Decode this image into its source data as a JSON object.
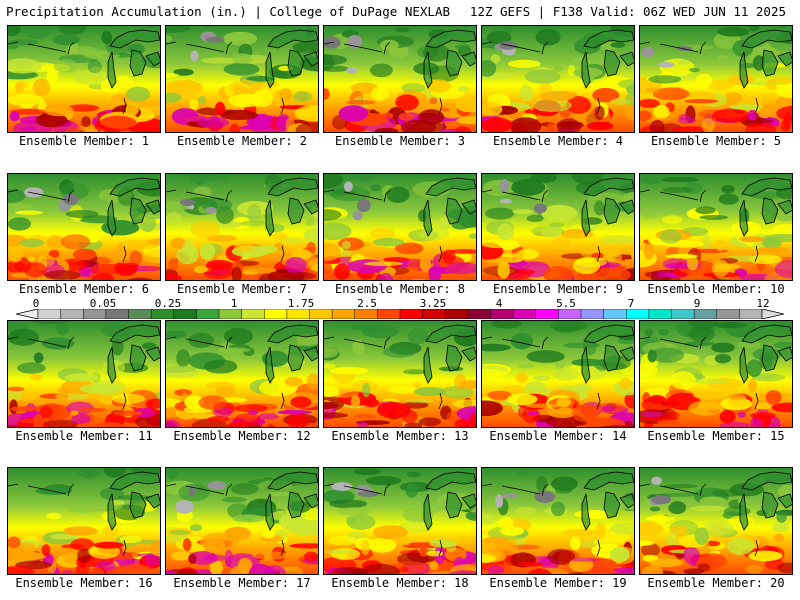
{
  "header": {
    "left_title": "Precipitation Accumulation (in.) | College of DuPage NEXLAB",
    "right_title": "12Z GEFS | F138 Valid: 06Z WED JUN 11 2025"
  },
  "colorbar": {
    "tick_labels": [
      "0",
      "0.05",
      "0.25",
      "1",
      "1.75",
      "2.5",
      "3.25",
      "4",
      "5.5",
      "7",
      "9",
      "12"
    ],
    "colors": [
      "#d2d2d2",
      "#b4b4b4",
      "#969696",
      "#787878",
      "#5a8c5a",
      "#2f8f2f",
      "#1f7a1f",
      "#3ca53c",
      "#8cc83c",
      "#c8e632",
      "#ffff00",
      "#ffe600",
      "#ffc800",
      "#ffa500",
      "#ff7f00",
      "#ff4500",
      "#ff0000",
      "#d20000",
      "#aa0000",
      "#8b0032",
      "#b4006e",
      "#dc00b4",
      "#ff00ff",
      "#c864ff",
      "#9696ff",
      "#64c8ff",
      "#00ffff",
      "#00e6c8",
      "#40c8c8",
      "#64a0a0",
      "#969696",
      "#b4b4b4"
    ]
  },
  "panels": [
    {
      "label": "Ensemble Member: 1"
    },
    {
      "label": "Ensemble Member: 2"
    },
    {
      "label": "Ensemble Member: 3"
    },
    {
      "label": "Ensemble Member: 4"
    },
    {
      "label": "Ensemble Member: 5"
    },
    {
      "label": "Ensemble Member: 6"
    },
    {
      "label": "Ensemble Member: 7"
    },
    {
      "label": "Ensemble Member: 8"
    },
    {
      "label": "Ensemble Member: 9"
    },
    {
      "label": "Ensemble Member: 10"
    },
    {
      "label": "Ensemble Member: 11"
    },
    {
      "label": "Ensemble Member: 12"
    },
    {
      "label": "Ensemble Member: 13"
    },
    {
      "label": "Ensemble Member: 14"
    },
    {
      "label": "Ensemble Member: 15"
    },
    {
      "label": "Ensemble Member: 16"
    },
    {
      "label": "Ensemble Member: 17"
    },
    {
      "label": "Ensemble Member: 18"
    },
    {
      "label": "Ensemble Member: 19"
    },
    {
      "label": "Ensemble Member: 20"
    }
  ]
}
